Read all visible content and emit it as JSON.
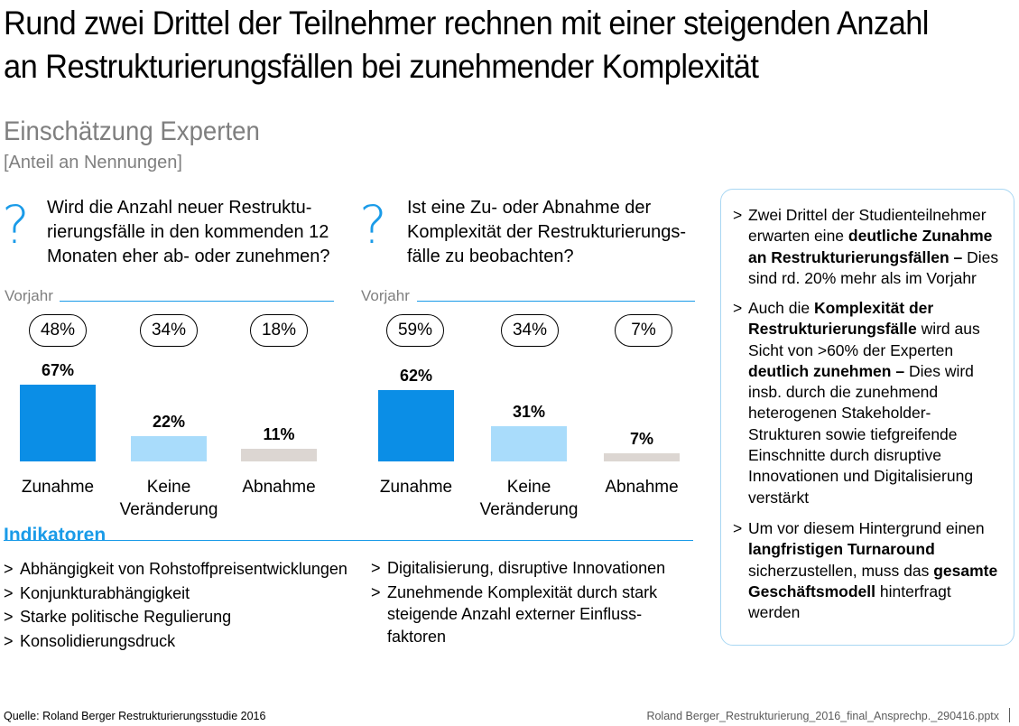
{
  "title": "Rund zwei Drittel der Teilnehmer rechnen mit einer steigenden Anzahl an Restrukturierungsfällen bei zunehmender Komplexität",
  "subtitle": "Einschätzung Experten",
  "unit_label": "[Anteil an Nennungen]",
  "colors": {
    "accent": "#1a9be8",
    "bar_up": "#0b8ee6",
    "bar_same": "#a9dcfb",
    "bar_down": "#dcd6d2",
    "muted": "#7f7f7f"
  },
  "questions": [
    {
      "mark": "?",
      "lines": [
        "Wird die Anzahl neuer Restruktu-",
        "rierungsfälle in den kommenden 12",
        "Monaten eher ab- oder zunehmen?"
      ]
    },
    {
      "mark": "?",
      "lines": [
        "Ist eine Zu- oder Abnahme der",
        "Komplexität der Restrukturierungs-",
        "fälle zu beobachten?"
      ]
    }
  ],
  "chart_data": [
    {
      "type": "bar",
      "categories": [
        "Zunahme",
        "Keine Veränderung",
        "Abnahme"
      ],
      "category_lines": [
        [
          "Zunahme"
        ],
        [
          "Keine",
          "Veränderung"
        ],
        [
          "Abnahme"
        ]
      ],
      "values": [
        67,
        22,
        11
      ],
      "value_labels": [
        "67%",
        "22%",
        "11%"
      ],
      "ylim": [
        0,
        67
      ],
      "previous_year_label": "Vorjahr",
      "previous_year_labels": [
        "48%",
        "34%",
        "18%"
      ]
    },
    {
      "type": "bar",
      "categories": [
        "Zunahme",
        "Keine Veränderung",
        "Abnahme"
      ],
      "category_lines": [
        [
          "Zunahme"
        ],
        [
          "Keine",
          "Veränderung"
        ],
        [
          "Abnahme"
        ]
      ],
      "values": [
        62,
        31,
        7
      ],
      "value_labels": [
        "62%",
        "31%",
        "7%"
      ],
      "ylim": [
        0,
        67
      ],
      "previous_year_label": "Vorjahr",
      "previous_year_labels": [
        "59%",
        "34%",
        "7%"
      ]
    }
  ],
  "indicators": {
    "title": "Indikatoren",
    "left": [
      "Abhängigkeit von Rohstoffpreisentwicklungen",
      "Konjunkturabhängigkeit",
      "Starke politische Regulierung",
      "Konsolidierungsdruck"
    ],
    "right": [
      "Digitalisierung, disruptive Innovationen",
      "Zunehmende Komplexität durch stark steigende Anzahl externer Einfluss-faktoren"
    ]
  },
  "sidebar": {
    "marker": ">",
    "items": [
      {
        "parts": [
          {
            "text": "Zwei Drittel der Studienteilnehmer erwarten eine ",
            "bold": false
          },
          {
            "text": "deutliche Zunahme an Restrukturierungsfällen – ",
            "bold": true
          },
          {
            "text": "Dies sind rd. 20% mehr als im Vorjahr",
            "bold": false
          }
        ]
      },
      {
        "parts": [
          {
            "text": "Auch die ",
            "bold": false
          },
          {
            "text": "Komplexität der Restrukturierungsfälle",
            "bold": true
          },
          {
            "text": " wird aus Sicht von >60% der Experten ",
            "bold": false
          },
          {
            "text": "deutlich zunehmen – ",
            "bold": true
          },
          {
            "text": "Dies wird insb. durch die zunehmend heterogenen Stakeholder-Strukturen sowie tiefgreifende Einschnitte durch disruptive Innovationen und Digitalisierung verstärkt",
            "bold": false
          }
        ]
      },
      {
        "parts": [
          {
            "text": "Um vor diesem Hintergrund einen ",
            "bold": false
          },
          {
            "text": "langfristigen Turnaround",
            "bold": true
          },
          {
            "text": " sicherzustellen, muss das ",
            "bold": false
          },
          {
            "text": "gesamte Geschäftsmodell",
            "bold": true
          },
          {
            "text": " hinterfragt werden",
            "bold": false
          }
        ]
      }
    ]
  },
  "footer": {
    "source": "Quelle: Roland Berger Restrukturierungsstudie 2016",
    "file": "Roland Berger_Restrukturierung_2016_final_Ansprechp._290416.pptx"
  }
}
